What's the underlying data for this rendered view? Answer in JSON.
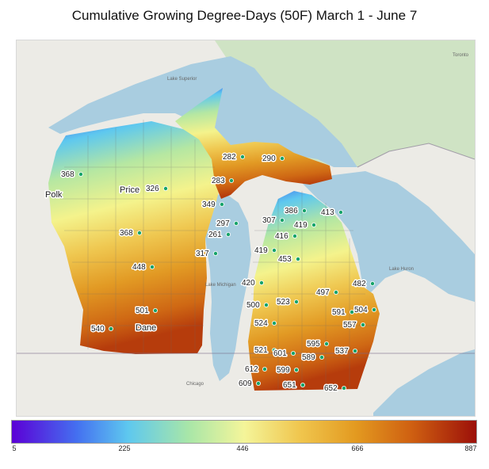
{
  "title": "Cumulative Growing Degree-Days (50F) March 1 - June 7",
  "colorbar": {
    "ticks": [
      "5",
      "225",
      "446",
      "666",
      "887"
    ]
  },
  "map_labels": [
    {
      "text": "Lake Superior"
    },
    {
      "text": "Lake Huron"
    },
    {
      "text": "Lake Michigan"
    },
    {
      "text": "Polk"
    },
    {
      "text": "Price"
    },
    {
      "text": "Dane"
    },
    {
      "text": "Chicago"
    },
    {
      "text": "Toronto"
    }
  ],
  "points": [
    {
      "value": "282"
    },
    {
      "value": "290"
    },
    {
      "value": "368"
    },
    {
      "value": "326"
    },
    {
      "value": "283"
    },
    {
      "value": "349"
    },
    {
      "value": "386"
    },
    {
      "value": "413"
    },
    {
      "value": "307"
    },
    {
      "value": "419"
    },
    {
      "value": "297"
    },
    {
      "value": "261"
    },
    {
      "value": "416"
    },
    {
      "value": "368"
    },
    {
      "value": "317"
    },
    {
      "value": "419"
    },
    {
      "value": "453"
    },
    {
      "value": "448"
    },
    {
      "value": "420"
    },
    {
      "value": "482"
    },
    {
      "value": "497"
    },
    {
      "value": "523"
    },
    {
      "value": "500"
    },
    {
      "value": "591"
    },
    {
      "value": "504"
    },
    {
      "value": "501"
    },
    {
      "value": "524"
    },
    {
      "value": "557"
    },
    {
      "value": "540"
    },
    {
      "value": "595"
    },
    {
      "value": "521"
    },
    {
      "value": "601"
    },
    {
      "value": "537"
    },
    {
      "value": "589"
    },
    {
      "value": "612"
    },
    {
      "value": "599"
    },
    {
      "value": "609"
    },
    {
      "value": "651"
    },
    {
      "value": "652"
    }
  ]
}
